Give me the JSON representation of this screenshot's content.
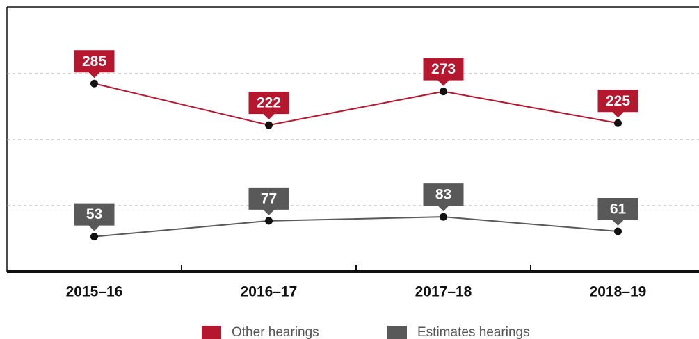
{
  "chart_data": {
    "type": "line",
    "categories": [
      "2015–16",
      "2016–17",
      "2017–18",
      "2018–19"
    ],
    "series": [
      {
        "name": "Other hearings",
        "color": "#b5172f",
        "values": [
          285,
          222,
          273,
          225
        ]
      },
      {
        "name": "Estimates hearings",
        "color": "#595959",
        "values": [
          53,
          77,
          83,
          61
        ]
      }
    ],
    "ylim": [
      0,
      400
    ],
    "yticks": [
      100,
      200,
      300
    ],
    "grid": true
  }
}
